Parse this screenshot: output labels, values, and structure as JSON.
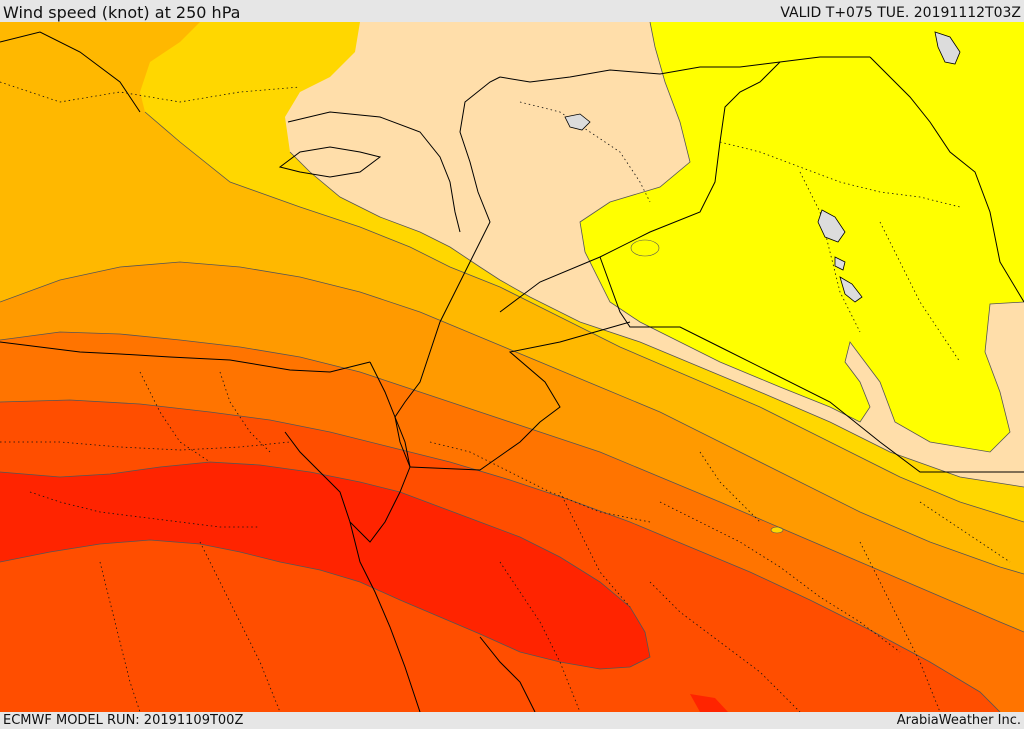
{
  "header": {
    "title": "Wind speed (knot) at 250 hPa",
    "valid": "VALID T+075 TUE. 20191112T03Z"
  },
  "footer": {
    "model_run": "ECMWF MODEL RUN: 20191109T00Z",
    "credit": "ArabiaWeather Inc."
  },
  "colors": {
    "band_1": "#ffdeaa",
    "band_2": "#ffff00",
    "band_3": "#ffd700",
    "band_4": "#ffb800",
    "band_5": "#ff9a00",
    "band_6": "#ff7400",
    "band_7": "#ff4e00",
    "band_8": "#ff2400",
    "contour": "#555555",
    "border": "#000000",
    "lake": "#dcdcdc"
  }
}
